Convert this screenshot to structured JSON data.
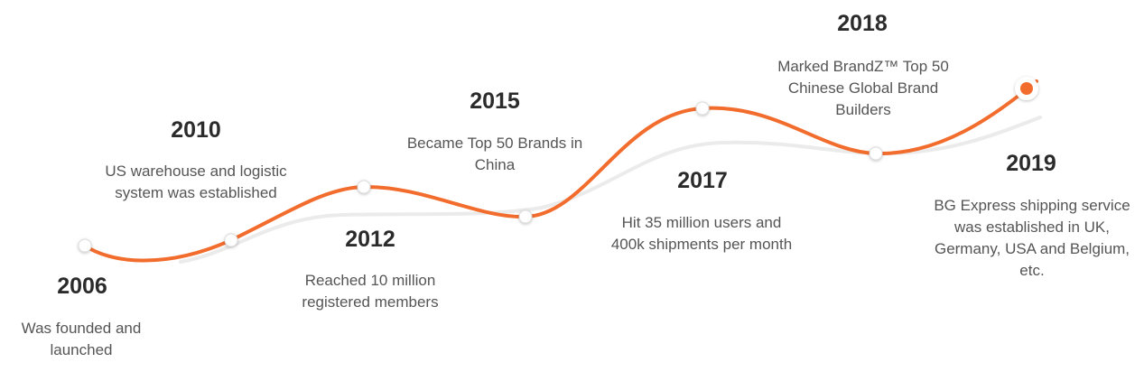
{
  "colors": {
    "accent": "#f26d2d",
    "track": "#ebebeb",
    "year_text": "#2b2b2b",
    "desc_text": "#555555",
    "node_fill": "#ffffff"
  },
  "milestones": [
    {
      "year": "2006",
      "text": "Was founded and launched"
    },
    {
      "year": "2010",
      "text": "US warehouse and logistic system was established"
    },
    {
      "year": "2012",
      "text": "Reached 10 million registered members"
    },
    {
      "year": "2015",
      "text": "Became Top 50 Brands in China"
    },
    {
      "year": "2017",
      "text": "Hit 35 million users and 400k shipments per month"
    },
    {
      "year": "2018",
      "text": "Marked BrandZ™ Top 50 Chinese Global Brand Builders"
    },
    {
      "year": "2019",
      "text": "BG Express shipping service was established in UK, Germany, USA and Belgium, etc."
    }
  ]
}
